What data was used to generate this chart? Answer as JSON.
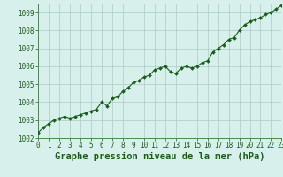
{
  "x": [
    0,
    0.5,
    1,
    1.5,
    2,
    2.5,
    3,
    3.5,
    4,
    4.5,
    5,
    5.5,
    6,
    6.5,
    7,
    7.5,
    8,
    8.5,
    9,
    9.5,
    10,
    10.5,
    11,
    11.5,
    12,
    12.5,
    13,
    13.5,
    14,
    14.5,
    15,
    15.5,
    16,
    16.5,
    17,
    17.5,
    18,
    18.5,
    19,
    19.5,
    20,
    20.5,
    21,
    21.5,
    22,
    22.5,
    23
  ],
  "y": [
    1002.3,
    1002.6,
    1002.8,
    1003.0,
    1003.1,
    1003.2,
    1003.1,
    1003.2,
    1003.3,
    1003.4,
    1003.5,
    1003.6,
    1004.0,
    1003.8,
    1004.2,
    1004.3,
    1004.6,
    1004.8,
    1005.1,
    1005.2,
    1005.4,
    1005.5,
    1005.8,
    1005.9,
    1006.0,
    1005.7,
    1005.6,
    1005.9,
    1006.0,
    1005.9,
    1006.0,
    1006.2,
    1006.3,
    1006.8,
    1007.0,
    1007.2,
    1007.5,
    1007.6,
    1008.0,
    1008.3,
    1008.5,
    1008.6,
    1008.7,
    1008.9,
    1009.0,
    1009.2,
    1009.4
  ],
  "line_color": "#1a5c1a",
  "marker_color": "#1a5c1a",
  "bg_color": "#d8f0ec",
  "grid_color": "#a8ccc8",
  "xlabel": "Graphe pression niveau de la mer (hPa)",
  "xlabel_color": "#1a5c1a",
  "tick_color": "#1a5c1a",
  "spine_color": "#4a8a4a",
  "ylim": [
    1002,
    1009.5
  ],
  "xlim": [
    0,
    23
  ],
  "yticks": [
    1002,
    1003,
    1004,
    1005,
    1006,
    1007,
    1008,
    1009
  ],
  "xticks": [
    0,
    1,
    2,
    3,
    4,
    5,
    6,
    7,
    8,
    9,
    10,
    11,
    12,
    13,
    14,
    15,
    16,
    17,
    18,
    19,
    20,
    21,
    22,
    23
  ],
  "tick_fontsize": 5.5,
  "xlabel_fontsize": 7.5,
  "marker_size": 2.0,
  "line_width": 0.8
}
